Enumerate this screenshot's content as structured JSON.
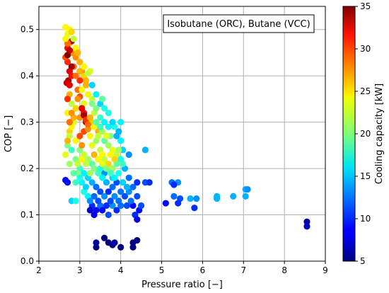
{
  "chart_data": {
    "type": "scatter",
    "title": "",
    "annotation": "Isobutane (ORC), Butane (VCC)",
    "xlabel": "Pressure ratio [−]",
    "ylabel": "COP [−]",
    "xlim": [
      2,
      9
    ],
    "ylim": [
      0.0,
      0.55
    ],
    "xticks": [
      "2",
      "3",
      "4",
      "5",
      "6",
      "7",
      "8",
      "9"
    ],
    "yticks": [
      "0.0",
      "0.1",
      "0.2",
      "0.3",
      "0.4",
      "0.5"
    ],
    "grid": true,
    "colorbar": {
      "label": "Cooling capacity [kW]",
      "range": [
        5,
        35
      ],
      "ticks": [
        "5",
        "10",
        "15",
        "20",
        "25",
        "30",
        "35"
      ],
      "colormap": "jet"
    },
    "points": [
      [
        2.65,
        0.505,
        24
      ],
      [
        2.7,
        0.49,
        23
      ],
      [
        2.75,
        0.47,
        25
      ],
      [
        2.8,
        0.45,
        27
      ],
      [
        2.7,
        0.43,
        30
      ],
      [
        2.75,
        0.41,
        32
      ],
      [
        2.72,
        0.39,
        34
      ],
      [
        2.68,
        0.385,
        33
      ],
      [
        2.8,
        0.4,
        31
      ],
      [
        2.9,
        0.44,
        27
      ],
      [
        2.85,
        0.42,
        28
      ],
      [
        3.0,
        0.43,
        26
      ],
      [
        3.05,
        0.41,
        27
      ],
      [
        3.1,
        0.4,
        25
      ],
      [
        3.15,
        0.38,
        26
      ],
      [
        2.95,
        0.37,
        28
      ],
      [
        3.0,
        0.355,
        29
      ],
      [
        3.2,
        0.36,
        24
      ],
      [
        3.3,
        0.35,
        22
      ],
      [
        3.1,
        0.34,
        23
      ],
      [
        2.7,
        0.46,
        31
      ],
      [
        2.8,
        0.475,
        33
      ],
      [
        2.75,
        0.36,
        26
      ],
      [
        2.8,
        0.34,
        22
      ],
      [
        2.7,
        0.32,
        24
      ],
      [
        2.85,
        0.3,
        23
      ],
      [
        2.75,
        0.28,
        25
      ],
      [
        2.9,
        0.26,
        24
      ],
      [
        2.8,
        0.24,
        18
      ],
      [
        2.9,
        0.22,
        20
      ],
      [
        3.0,
        0.31,
        27
      ],
      [
        3.1,
        0.32,
        31
      ],
      [
        3.15,
        0.3,
        33
      ],
      [
        3.1,
        0.28,
        29
      ],
      [
        3.2,
        0.285,
        27
      ],
      [
        3.3,
        0.3,
        25
      ],
      [
        3.35,
        0.32,
        22
      ],
      [
        3.4,
        0.33,
        20
      ],
      [
        3.5,
        0.31,
        18
      ],
      [
        3.25,
        0.27,
        24
      ],
      [
        3.3,
        0.25,
        23
      ],
      [
        3.4,
        0.26,
        21
      ],
      [
        3.5,
        0.24,
        22
      ],
      [
        3.55,
        0.23,
        24
      ],
      [
        3.6,
        0.26,
        19
      ],
      [
        3.7,
        0.25,
        21
      ],
      [
        3.8,
        0.24,
        23
      ],
      [
        3.9,
        0.23,
        22
      ],
      [
        3.75,
        0.27,
        20
      ],
      [
        3.85,
        0.29,
        17
      ],
      [
        3.6,
        0.3,
        16
      ],
      [
        3.7,
        0.32,
        17
      ],
      [
        3.5,
        0.34,
        15
      ],
      [
        3.4,
        0.36,
        16
      ],
      [
        3.3,
        0.38,
        15
      ],
      [
        3.45,
        0.28,
        26
      ],
      [
        3.6,
        0.22,
        22
      ],
      [
        3.7,
        0.21,
        25
      ],
      [
        3.8,
        0.2,
        21
      ],
      [
        3.9,
        0.21,
        19
      ],
      [
        4.0,
        0.22,
        17
      ],
      [
        4.05,
        0.24,
        15
      ],
      [
        4.0,
        0.26,
        16
      ],
      [
        3.95,
        0.28,
        14
      ],
      [
        4.1,
        0.2,
        14
      ],
      [
        4.2,
        0.23,
        13
      ],
      [
        4.2,
        0.18,
        12
      ],
      [
        3.8,
        0.18,
        15
      ],
      [
        3.6,
        0.19,
        13
      ],
      [
        3.5,
        0.2,
        17
      ],
      [
        3.3,
        0.21,
        19
      ],
      [
        3.2,
        0.22,
        21
      ],
      [
        3.1,
        0.23,
        22
      ],
      [
        3.0,
        0.24,
        20
      ],
      [
        3.0,
        0.2,
        18
      ],
      [
        3.1,
        0.19,
        16
      ],
      [
        3.2,
        0.18,
        15
      ],
      [
        3.3,
        0.17,
        14
      ],
      [
        3.4,
        0.16,
        12
      ],
      [
        3.5,
        0.15,
        11
      ],
      [
        3.6,
        0.14,
        13
      ],
      [
        3.7,
        0.15,
        10
      ],
      [
        3.8,
        0.16,
        12
      ],
      [
        3.9,
        0.17,
        11
      ],
      [
        4.0,
        0.15,
        12
      ],
      [
        4.1,
        0.14,
        11
      ],
      [
        4.2,
        0.15,
        13
      ],
      [
        4.3,
        0.16,
        12
      ],
      [
        4.4,
        0.17,
        10
      ],
      [
        4.4,
        0.14,
        11
      ],
      [
        4.3,
        0.12,
        9
      ],
      [
        4.35,
        0.1,
        10
      ],
      [
        4.45,
        0.11,
        9
      ],
      [
        4.4,
        0.09,
        8
      ],
      [
        4.5,
        0.12,
        11
      ],
      [
        3.3,
        0.12,
        10
      ],
      [
        3.4,
        0.11,
        9
      ],
      [
        3.35,
        0.1,
        8
      ],
      [
        3.5,
        0.12,
        12
      ],
      [
        3.7,
        0.1,
        11
      ],
      [
        3.8,
        0.12,
        13
      ],
      [
        3.9,
        0.11,
        10
      ],
      [
        4.0,
        0.12,
        12
      ],
      [
        3.2,
        0.14,
        16
      ],
      [
        3.1,
        0.15,
        17
      ],
      [
        2.9,
        0.17,
        18
      ],
      [
        2.8,
        0.13,
        15
      ],
      [
        2.9,
        0.13,
        17
      ],
      [
        2.7,
        0.17,
        9
      ],
      [
        2.95,
        0.19,
        20
      ],
      [
        2.65,
        0.175,
        9
      ],
      [
        3.25,
        0.11,
        7
      ],
      [
        3.6,
        0.05,
        5
      ],
      [
        3.4,
        0.04,
        6
      ],
      [
        3.4,
        0.03,
        5
      ],
      [
        3.7,
        0.04,
        5
      ],
      [
        3.8,
        0.035,
        5
      ],
      [
        4.0,
        0.03,
        5
      ],
      [
        4.3,
        0.04,
        5
      ],
      [
        4.4,
        0.045,
        5
      ],
      [
        4.3,
        0.03,
        5
      ],
      [
        3.85,
        0.04,
        6
      ],
      [
        4.6,
        0.17,
        11
      ],
      [
        4.7,
        0.17,
        10
      ],
      [
        4.6,
        0.24,
        14
      ],
      [
        5.1,
        0.125,
        9
      ],
      [
        5.25,
        0.17,
        12
      ],
      [
        5.3,
        0.14,
        12
      ],
      [
        5.4,
        0.17,
        13
      ],
      [
        5.45,
        0.135,
        11
      ],
      [
        5.4,
        0.125,
        10
      ],
      [
        5.3,
        0.165,
        10
      ],
      [
        5.7,
        0.135,
        14
      ],
      [
        5.8,
        0.115,
        10
      ],
      [
        5.85,
        0.135,
        13
      ],
      [
        6.35,
        0.14,
        14
      ],
      [
        6.35,
        0.135,
        14
      ],
      [
        6.75,
        0.14,
        14
      ],
      [
        7.05,
        0.155,
        14
      ],
      [
        7.1,
        0.155,
        13
      ],
      [
        7.05,
        0.14,
        14
      ],
      [
        8.55,
        0.085,
        6
      ],
      [
        8.55,
        0.075,
        7
      ],
      [
        2.7,
        0.25,
        20
      ],
      [
        2.75,
        0.27,
        22
      ],
      [
        2.8,
        0.29,
        24
      ],
      [
        2.85,
        0.31,
        26
      ],
      [
        2.9,
        0.33,
        25
      ],
      [
        2.95,
        0.35,
        27
      ],
      [
        3.05,
        0.37,
        24
      ],
      [
        3.15,
        0.39,
        26
      ],
      [
        3.25,
        0.41,
        23
      ],
      [
        2.65,
        0.44,
        29
      ],
      [
        2.7,
        0.47,
        28
      ],
      [
        2.65,
        0.48,
        24
      ],
      [
        2.75,
        0.5,
        24
      ],
      [
        2.8,
        0.495,
        25
      ],
      [
        2.85,
        0.48,
        22
      ],
      [
        2.9,
        0.46,
        24
      ],
      [
        2.95,
        0.45,
        26
      ],
      [
        3.0,
        0.39,
        30
      ],
      [
        3.05,
        0.33,
        32
      ],
      [
        3.1,
        0.315,
        34
      ],
      [
        3.15,
        0.305,
        30
      ],
      [
        3.2,
        0.295,
        28
      ],
      [
        3.25,
        0.31,
        26
      ],
      [
        3.35,
        0.29,
        24
      ],
      [
        3.45,
        0.27,
        22
      ],
      [
        3.55,
        0.28,
        21
      ],
      [
        3.65,
        0.27,
        23
      ],
      [
        3.75,
        0.23,
        24
      ],
      [
        3.85,
        0.22,
        25
      ],
      [
        3.95,
        0.24,
        21
      ],
      [
        4.05,
        0.21,
        18
      ],
      [
        3.65,
        0.17,
        14
      ],
      [
        3.55,
        0.18,
        16
      ],
      [
        3.45,
        0.19,
        18
      ],
      [
        3.35,
        0.2,
        20
      ],
      [
        3.25,
        0.19,
        21
      ],
      [
        3.15,
        0.21,
        22
      ],
      [
        3.05,
        0.22,
        24
      ],
      [
        2.95,
        0.21,
        22
      ],
      [
        2.85,
        0.19,
        19
      ],
      [
        2.75,
        0.21,
        21
      ],
      [
        2.65,
        0.23,
        23
      ],
      [
        2.7,
        0.26,
        26
      ],
      [
        2.75,
        0.3,
        28
      ],
      [
        2.8,
        0.32,
        27
      ],
      [
        2.7,
        0.35,
        30
      ],
      [
        2.75,
        0.38,
        32
      ],
      [
        2.8,
        0.42,
        34
      ],
      [
        2.7,
        0.445,
        35
      ],
      [
        2.75,
        0.455,
        33
      ],
      [
        3.0,
        0.27,
        29
      ],
      [
        3.05,
        0.25,
        27
      ],
      [
        3.35,
        0.23,
        26
      ],
      [
        3.45,
        0.22,
        24
      ],
      [
        3.55,
        0.21,
        23
      ],
      [
        3.65,
        0.2,
        20
      ],
      [
        3.75,
        0.19,
        18
      ],
      [
        3.85,
        0.18,
        16
      ],
      [
        3.95,
        0.19,
        17
      ],
      [
        4.05,
        0.17,
        15
      ],
      [
        4.15,
        0.16,
        14
      ],
      [
        4.25,
        0.13,
        12
      ],
      [
        4.15,
        0.12,
        11
      ],
      [
        3.95,
        0.13,
        12
      ],
      [
        3.85,
        0.14,
        13
      ],
      [
        3.75,
        0.13,
        11
      ],
      [
        3.65,
        0.12,
        10
      ],
      [
        3.55,
        0.11,
        9
      ],
      [
        3.45,
        0.13,
        11
      ],
      [
        3.35,
        0.14,
        12
      ],
      [
        3.25,
        0.13,
        13
      ],
      [
        3.15,
        0.16,
        15
      ],
      [
        3.05,
        0.17,
        16
      ],
      [
        3.0,
        0.18,
        17
      ],
      [
        3.3,
        0.34,
        20
      ],
      [
        3.4,
        0.3,
        19
      ],
      [
        3.5,
        0.29,
        18
      ],
      [
        3.6,
        0.33,
        17
      ],
      [
        3.7,
        0.29,
        16
      ],
      [
        3.8,
        0.3,
        15
      ],
      [
        3.9,
        0.27,
        14
      ],
      [
        4.0,
        0.3,
        16
      ],
      [
        3.55,
        0.35,
        19
      ],
      [
        3.2,
        0.405,
        22
      ],
      [
        3.1,
        0.42,
        24
      ],
      [
        3.0,
        0.41,
        26
      ],
      [
        2.9,
        0.4,
        28
      ]
    ]
  }
}
